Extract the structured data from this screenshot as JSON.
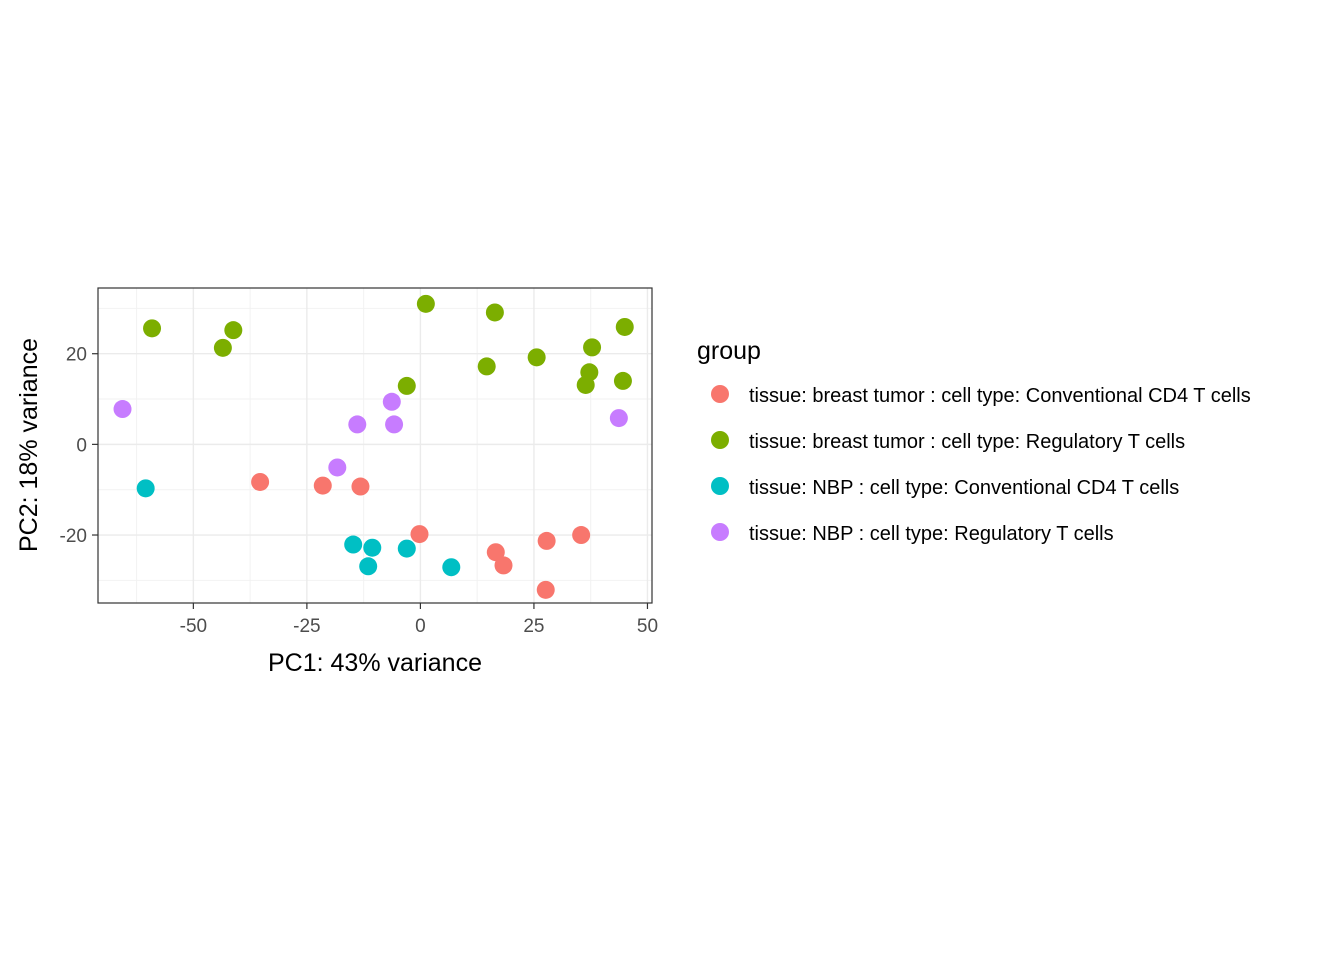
{
  "chart_data": {
    "type": "scatter",
    "title": "",
    "xlabel": "PC1: 43% variance",
    "ylabel": "PC2: 18% variance",
    "xlim": [
      -71,
      51
    ],
    "ylim": [
      -35,
      34.5
    ],
    "xticks": [
      -50,
      -25,
      0,
      25,
      50
    ],
    "xtick_labels": [
      "-50",
      "-25",
      "0",
      "25",
      "50"
    ],
    "yticks": [
      -20,
      0,
      20
    ],
    "ytick_labels": [
      "-20",
      "0",
      "20"
    ],
    "grid": true,
    "legend": {
      "title": "group",
      "position": "right"
    },
    "series": [
      {
        "name": "tissue: breast tumor : cell type: Conventional CD4 T cells",
        "color": "#F8766D",
        "points": [
          [
            -35.3,
            -8.3
          ],
          [
            -21.5,
            -9.1
          ],
          [
            -13.2,
            -9.3
          ],
          [
            -0.2,
            -19.8
          ],
          [
            16.6,
            -23.8
          ],
          [
            18.3,
            -26.7
          ],
          [
            27.8,
            -21.3
          ],
          [
            35.4,
            -20.0
          ],
          [
            27.6,
            -32.1
          ]
        ]
      },
      {
        "name": "tissue: breast tumor : cell type: Regulatory T cells",
        "color": "#7CAE00",
        "points": [
          [
            -59.1,
            25.6
          ],
          [
            -43.5,
            21.3
          ],
          [
            -41.2,
            25.2
          ],
          [
            1.2,
            31.0
          ],
          [
            -3.0,
            12.9
          ],
          [
            14.6,
            17.2
          ],
          [
            16.4,
            29.1
          ],
          [
            25.6,
            19.2
          ],
          [
            36.4,
            13.1
          ],
          [
            37.2,
            15.9
          ],
          [
            37.8,
            21.4
          ],
          [
            45.0,
            25.9
          ],
          [
            44.6,
            14.0
          ]
        ]
      },
      {
        "name": "tissue: NBP : cell type: Conventional CD4 T cells",
        "color": "#00BFC4",
        "points": [
          [
            -60.5,
            -9.7
          ],
          [
            -14.8,
            -22.1
          ],
          [
            -11.5,
            -26.9
          ],
          [
            -10.6,
            -22.8
          ],
          [
            -3.0,
            -23.0
          ],
          [
            6.8,
            -27.1
          ]
        ]
      },
      {
        "name": "tissue: NBP : cell type: Regulatory T cells",
        "color": "#C77CFF",
        "points": [
          [
            -65.6,
            7.8
          ],
          [
            -18.3,
            -5.1
          ],
          [
            -13.9,
            4.4
          ],
          [
            -6.3,
            9.4
          ],
          [
            -5.8,
            4.4
          ],
          [
            43.7,
            5.8
          ]
        ]
      }
    ]
  }
}
